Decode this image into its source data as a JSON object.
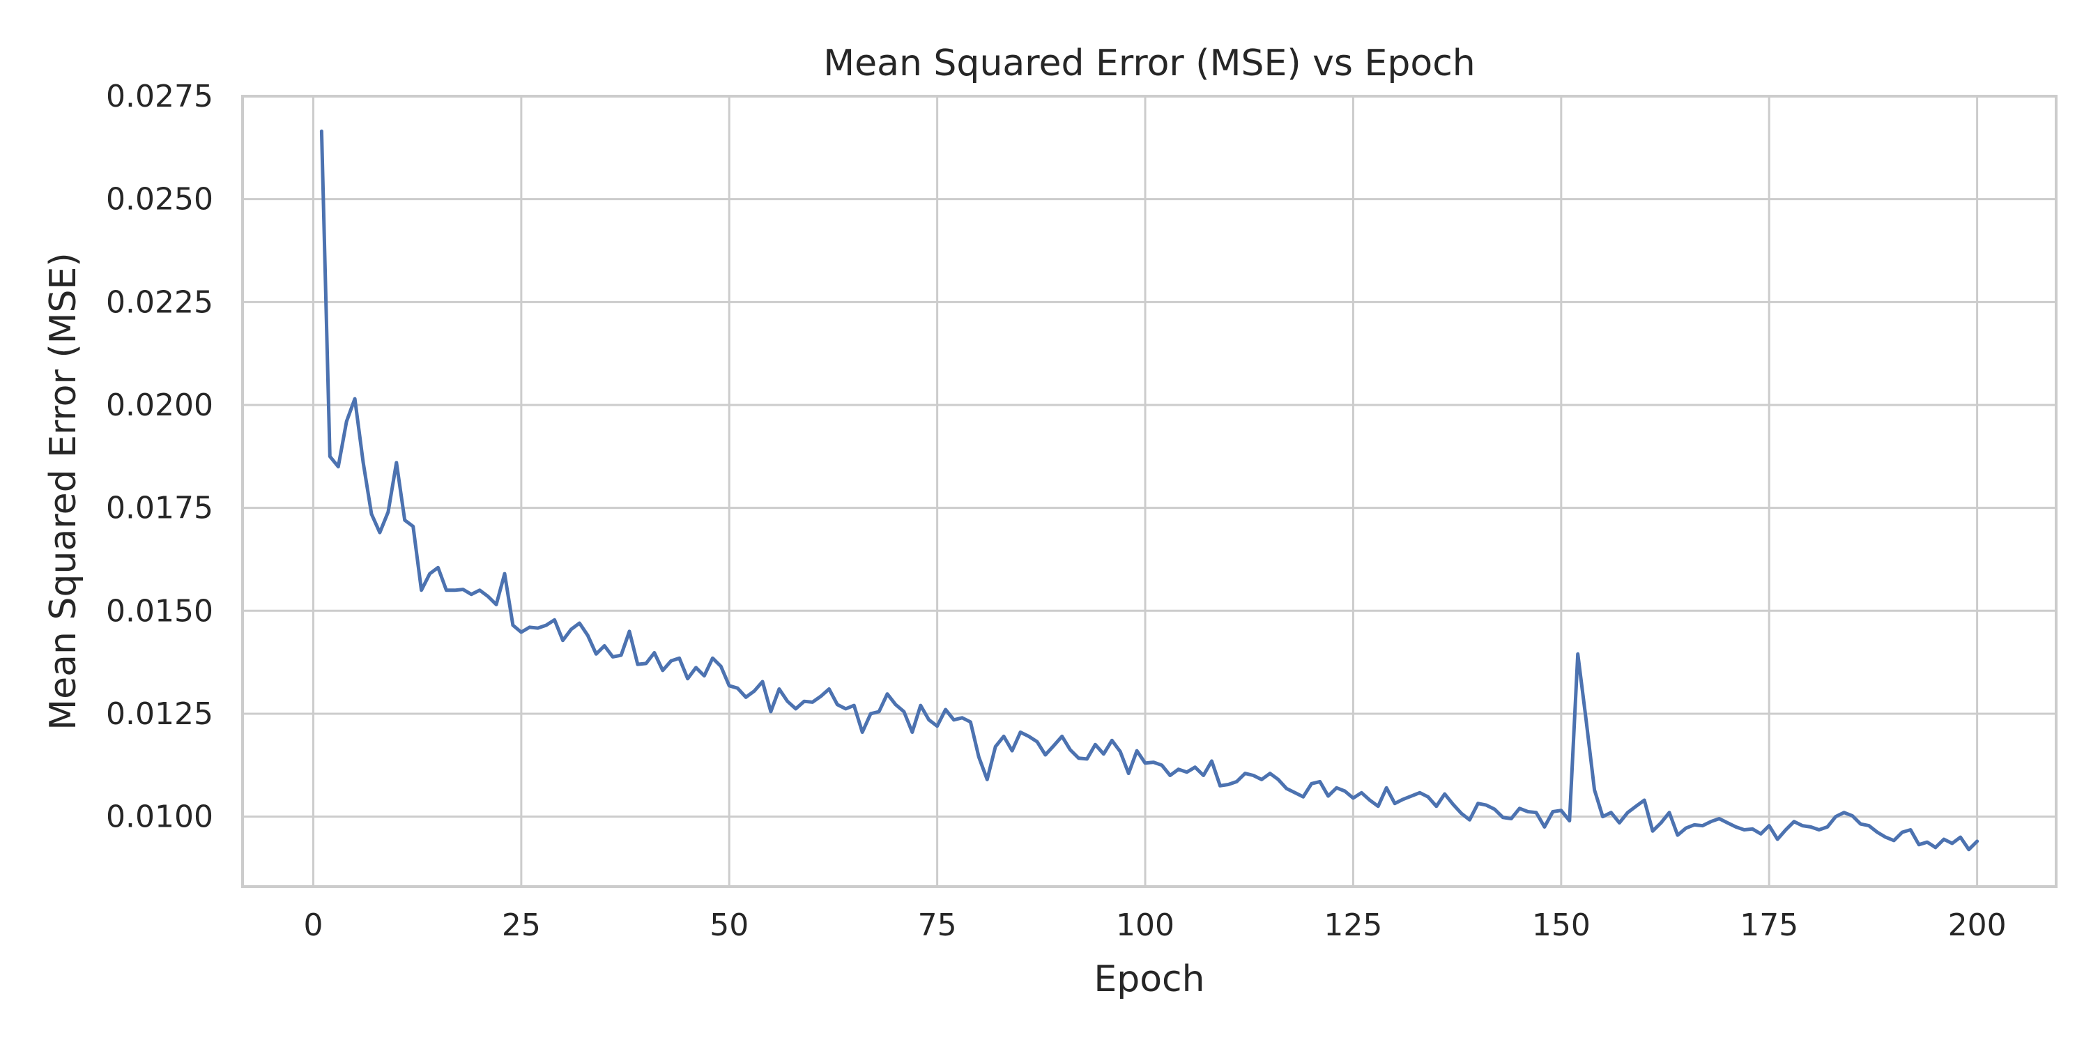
{
  "chart_data": {
    "type": "line",
    "title": "Mean Squared Error (MSE) vs Epoch",
    "xlabel": "Epoch",
    "ylabel": "Mean Squared Error (MSE)",
    "xlim": [
      -8.5,
      209.5
    ],
    "ylim": [
      0.0083,
      0.0275
    ],
    "grid": true,
    "x_ticks": [
      0,
      25,
      50,
      75,
      100,
      125,
      150,
      175,
      200
    ],
    "x_tick_labels": [
      "0",
      "25",
      "50",
      "75",
      "100",
      "125",
      "150",
      "175",
      "200"
    ],
    "y_ticks": [
      0.01,
      0.0125,
      0.015,
      0.0175,
      0.02,
      0.0225,
      0.025,
      0.0275
    ],
    "y_tick_labels": [
      "0.0100",
      "0.0125",
      "0.0150",
      "0.0175",
      "0.0200",
      "0.0225",
      "0.0250",
      "0.0275"
    ],
    "colors": {
      "series": "#4c72b0",
      "grid": "#cccccc",
      "text": "#262626"
    },
    "series": [
      {
        "x_start": 1,
        "x_step": 1,
        "values": [
          0.02665,
          0.01875,
          0.0185,
          0.0196,
          0.02015,
          0.0186,
          0.01735,
          0.0169,
          0.0174,
          0.0186,
          0.0172,
          0.01705,
          0.0155,
          0.0159,
          0.01605,
          0.0155,
          0.0155,
          0.01552,
          0.0154,
          0.0155,
          0.01535,
          0.01515,
          0.0159,
          0.01465,
          0.01448,
          0.0146,
          0.01458,
          0.01465,
          0.01478,
          0.01428,
          0.01455,
          0.0147,
          0.0144,
          0.01395,
          0.01415,
          0.01388,
          0.01392,
          0.0145,
          0.0137,
          0.01372,
          0.01398,
          0.01355,
          0.01378,
          0.01385,
          0.01335,
          0.01362,
          0.01342,
          0.01385,
          0.01365,
          0.01318,
          0.01312,
          0.0129,
          0.01305,
          0.01328,
          0.01255,
          0.0131,
          0.0128,
          0.01262,
          0.0128,
          0.01278,
          0.01292,
          0.0131,
          0.01272,
          0.01262,
          0.0127,
          0.01205,
          0.0125,
          0.01255,
          0.01298,
          0.01272,
          0.01255,
          0.01205,
          0.0127,
          0.01235,
          0.0122,
          0.0126,
          0.01235,
          0.0124,
          0.0123,
          0.01145,
          0.0109,
          0.0117,
          0.01195,
          0.0116,
          0.01205,
          0.01195,
          0.01182,
          0.0115,
          0.01172,
          0.01195,
          0.01162,
          0.01142,
          0.0114,
          0.01175,
          0.01152,
          0.01185,
          0.01158,
          0.01105,
          0.0116,
          0.0113,
          0.01132,
          0.01125,
          0.011,
          0.01115,
          0.01108,
          0.0112,
          0.011,
          0.01135,
          0.01075,
          0.01078,
          0.01085,
          0.01105,
          0.011,
          0.0109,
          0.01105,
          0.0109,
          0.01068,
          0.01058,
          0.01048,
          0.0108,
          0.01085,
          0.0105,
          0.0107,
          0.01062,
          0.01045,
          0.01058,
          0.0104,
          0.01025,
          0.0107,
          0.01032,
          0.01042,
          0.0105,
          0.01058,
          0.01048,
          0.01025,
          0.01055,
          0.0103,
          0.01008,
          0.00992,
          0.01032,
          0.01028,
          0.01018,
          0.00998,
          0.00995,
          0.0102,
          0.01012,
          0.0101,
          0.00975,
          0.01012,
          0.01015,
          0.0099,
          0.01395,
          0.01235,
          0.01065,
          0.01,
          0.0101,
          0.00985,
          0.0101,
          0.01025,
          0.0104,
          0.00965,
          0.00985,
          0.0101,
          0.00955,
          0.00972,
          0.0098,
          0.00978,
          0.00988,
          0.00995,
          0.00985,
          0.00975,
          0.00968,
          0.0097,
          0.00958,
          0.00978,
          0.00945,
          0.00968,
          0.00988,
          0.00978,
          0.00975,
          0.00968,
          0.00975,
          0.01,
          0.0101,
          0.01002,
          0.00982,
          0.00978,
          0.00962,
          0.0095,
          0.00942,
          0.00962,
          0.00968,
          0.00932,
          0.00938,
          0.00925,
          0.00945,
          0.00935,
          0.0095,
          0.0092,
          0.0094
        ]
      }
    ]
  }
}
